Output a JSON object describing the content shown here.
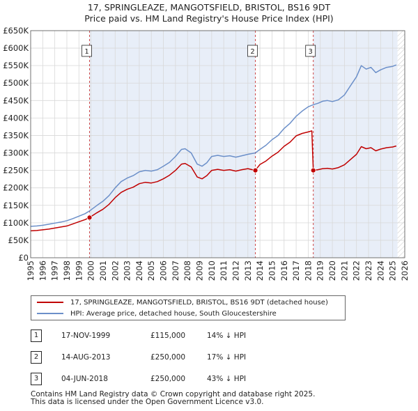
{
  "title": {
    "line1": "17, SPRINGLEAZE, MANGOTSFIELD, BRISTOL, BS16 9DT",
    "line2": "Price paid vs. HM Land Registry's House Price Index (HPI)"
  },
  "colors": {
    "property": "#c00000",
    "hpi": "#6b8fc9",
    "shade": "#e8eef8",
    "grid": "#d8d8d8"
  },
  "legend": {
    "property_label": "17, SPRINGLEAZE, MANGOTSFIELD, BRISTOL, BS16 9DT (detached house)",
    "hpi_label": "HPI: Average price, detached house, South Gloucestershire"
  },
  "sales": [
    {
      "num": "1",
      "date": "17-NOV-1999",
      "price": "£115,000",
      "delta": "14% ↓ HPI"
    },
    {
      "num": "2",
      "date": "14-AUG-2013",
      "price": "£250,000",
      "delta": "17% ↓ HPI"
    },
    {
      "num": "3",
      "date": "04-JUN-2018",
      "price": "£250,000",
      "delta": "43% ↓ HPI"
    }
  ],
  "footer": {
    "line1": "Contains HM Land Registry data © Crown copyright and database right 2025.",
    "line2": "This data is licensed under the Open Government Licence v3.0."
  },
  "chart_data": {
    "type": "line",
    "title": "17, SPRINGLEAZE, MANGOTSFIELD, BRISTOL, BS16 9DT — Price paid vs. HM Land Registry's House Price Index (HPI)",
    "xlabel": "",
    "ylabel": "",
    "xlim": [
      1995,
      2026
    ],
    "ylim": [
      0,
      650000
    ],
    "y_ticks": [
      0,
      50000,
      100000,
      150000,
      200000,
      250000,
      300000,
      350000,
      400000,
      450000,
      500000,
      550000,
      600000,
      650000
    ],
    "y_tick_labels": [
      "£0",
      "£50K",
      "£100K",
      "£150K",
      "£200K",
      "£250K",
      "£300K",
      "£350K",
      "£400K",
      "£450K",
      "£500K",
      "£550K",
      "£600K",
      "£650K"
    ],
    "x_ticks": [
      1995,
      1996,
      1997,
      1998,
      1999,
      2000,
      2001,
      2002,
      2003,
      2004,
      2005,
      2006,
      2007,
      2008,
      2009,
      2010,
      2011,
      2012,
      2013,
      2014,
      2015,
      2016,
      2017,
      2018,
      2019,
      2020,
      2021,
      2022,
      2023,
      2024,
      2025,
      2026
    ],
    "grid": true,
    "shaded_ranges": [
      [
        1999.88,
        2013.62
      ],
      [
        2018.42,
        2025.4
      ]
    ],
    "hatched_range": [
      2025.4,
      2026
    ],
    "sale_markers": [
      {
        "label": "1",
        "x": 1999.88,
        "y": 115000
      },
      {
        "label": "2",
        "x": 2013.62,
        "y": 250000
      },
      {
        "label": "3",
        "x": 2018.42,
        "y": 250000
      }
    ],
    "series": [
      {
        "name": "HPI: Average price, detached house, South Gloucestershire",
        "x": [
          1995,
          1995.5,
          1996,
          1996.5,
          1997,
          1997.5,
          1998,
          1998.5,
          1999,
          1999.5,
          1999.88,
          2000.5,
          2001,
          2001.5,
          2002,
          2002.5,
          2003,
          2003.5,
          2004,
          2004.5,
          2005,
          2005.5,
          2006,
          2006.5,
          2007,
          2007.5,
          2007.8,
          2008.3,
          2008.8,
          2009.2,
          2009.6,
          2010,
          2010.5,
          2011,
          2011.5,
          2012,
          2012.5,
          2013,
          2013.62,
          2014,
          2014.5,
          2015,
          2015.5,
          2016,
          2016.5,
          2017,
          2017.5,
          2018,
          2018.42,
          2018.8,
          2019.2,
          2019.6,
          2020,
          2020.5,
          2021,
          2021.5,
          2022,
          2022.4,
          2022.8,
          2023.2,
          2023.6,
          2024,
          2024.5,
          2025,
          2025.3
        ],
        "values": [
          90000,
          91000,
          93000,
          96000,
          99000,
          102000,
          106000,
          112000,
          119000,
          126000,
          134000,
          150000,
          162000,
          178000,
          200000,
          218000,
          228000,
          235000,
          246000,
          250000,
          248000,
          252000,
          262000,
          273000,
          290000,
          310000,
          312000,
          300000,
          268000,
          262000,
          272000,
          290000,
          293000,
          290000,
          292000,
          288000,
          292000,
          296000,
          300000,
          310000,
          322000,
          338000,
          350000,
          370000,
          385000,
          405000,
          420000,
          432000,
          438000,
          442000,
          448000,
          450000,
          447000,
          452000,
          466000,
          492000,
          518000,
          550000,
          540000,
          545000,
          530000,
          538000,
          545000,
          548000,
          552000
        ]
      },
      {
        "name": "17, SPRINGLEAZE, MANGOTSFIELD, BRISTOL, BS16 9DT (detached house)",
        "x": [
          1995,
          1995.5,
          1996,
          1996.5,
          1997,
          1997.5,
          1998,
          1998.5,
          1999,
          1999.5,
          1999.88,
          2000.5,
          2001,
          2001.5,
          2002,
          2002.5,
          2003,
          2003.5,
          2004,
          2004.5,
          2005,
          2005.5,
          2006,
          2006.5,
          2007,
          2007.5,
          2007.8,
          2008.3,
          2008.8,
          2009.2,
          2009.6,
          2010,
          2010.5,
          2011,
          2011.5,
          2012,
          2012.5,
          2013,
          2013.62,
          2014,
          2014.5,
          2015,
          2015.5,
          2016,
          2016.5,
          2017,
          2017.5,
          2018,
          2018.3,
          2018.42,
          2018.8,
          2019.2,
          2019.6,
          2020,
          2020.5,
          2021,
          2021.5,
          2022,
          2022.4,
          2022.8,
          2023.2,
          2023.6,
          2024,
          2024.5,
          2025,
          2025.3
        ],
        "values": [
          77000,
          78000,
          80000,
          82000,
          85000,
          88000,
          91000,
          97000,
          103000,
          109000,
          115000,
          129000,
          139000,
          153000,
          172000,
          187000,
          196000,
          202000,
          212000,
          216000,
          214000,
          218000,
          226000,
          236000,
          250000,
          268000,
          270000,
          260000,
          231000,
          226000,
          235000,
          250000,
          253000,
          250000,
          252000,
          248000,
          252000,
          255000,
          250000,
          267000,
          277000,
          291000,
          302000,
          319000,
          331000,
          349000,
          356000,
          360000,
          363000,
          250000,
          252000,
          255000,
          256000,
          254000,
          258000,
          266000,
          281000,
          296000,
          318000,
          312000,
          315000,
          306000,
          311000,
          315000,
          317000,
          320000
        ]
      }
    ]
  }
}
